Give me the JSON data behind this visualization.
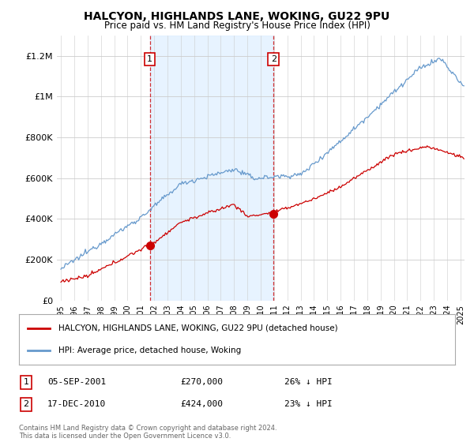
{
  "title": "HALCYON, HIGHLANDS LANE, WOKING, GU22 9PU",
  "subtitle": "Price paid vs. HM Land Registry's House Price Index (HPI)",
  "ylabel_ticks": [
    "£0",
    "£200K",
    "£400K",
    "£600K",
    "£800K",
    "£1M",
    "£1.2M"
  ],
  "ytick_values": [
    0,
    200000,
    400000,
    600000,
    800000,
    1000000,
    1200000
  ],
  "ylim": [
    0,
    1300000
  ],
  "xlim_start": 1994.7,
  "xlim_end": 2025.3,
  "sale1_x": 2001.67,
  "sale1_y": 270000,
  "sale1_label": "1",
  "sale1_date": "05-SEP-2001",
  "sale1_price": "£270,000",
  "sale1_hpi": "26% ↓ HPI",
  "sale2_x": 2010.96,
  "sale2_y": 424000,
  "sale2_label": "2",
  "sale2_date": "17-DEC-2010",
  "sale2_price": "£424,000",
  "sale2_hpi": "23% ↓ HPI",
  "line_red": "#cc0000",
  "line_blue": "#6699cc",
  "shade_color": "#ddeeff",
  "vline_color": "#cc0000",
  "legend_label_red": "HALCYON, HIGHLANDS LANE, WOKING, GU22 9PU (detached house)",
  "legend_label_blue": "HPI: Average price, detached house, Woking",
  "footnote": "Contains HM Land Registry data © Crown copyright and database right 2024.\nThis data is licensed under the Open Government Licence v3.0.",
  "background_color": "#ffffff"
}
